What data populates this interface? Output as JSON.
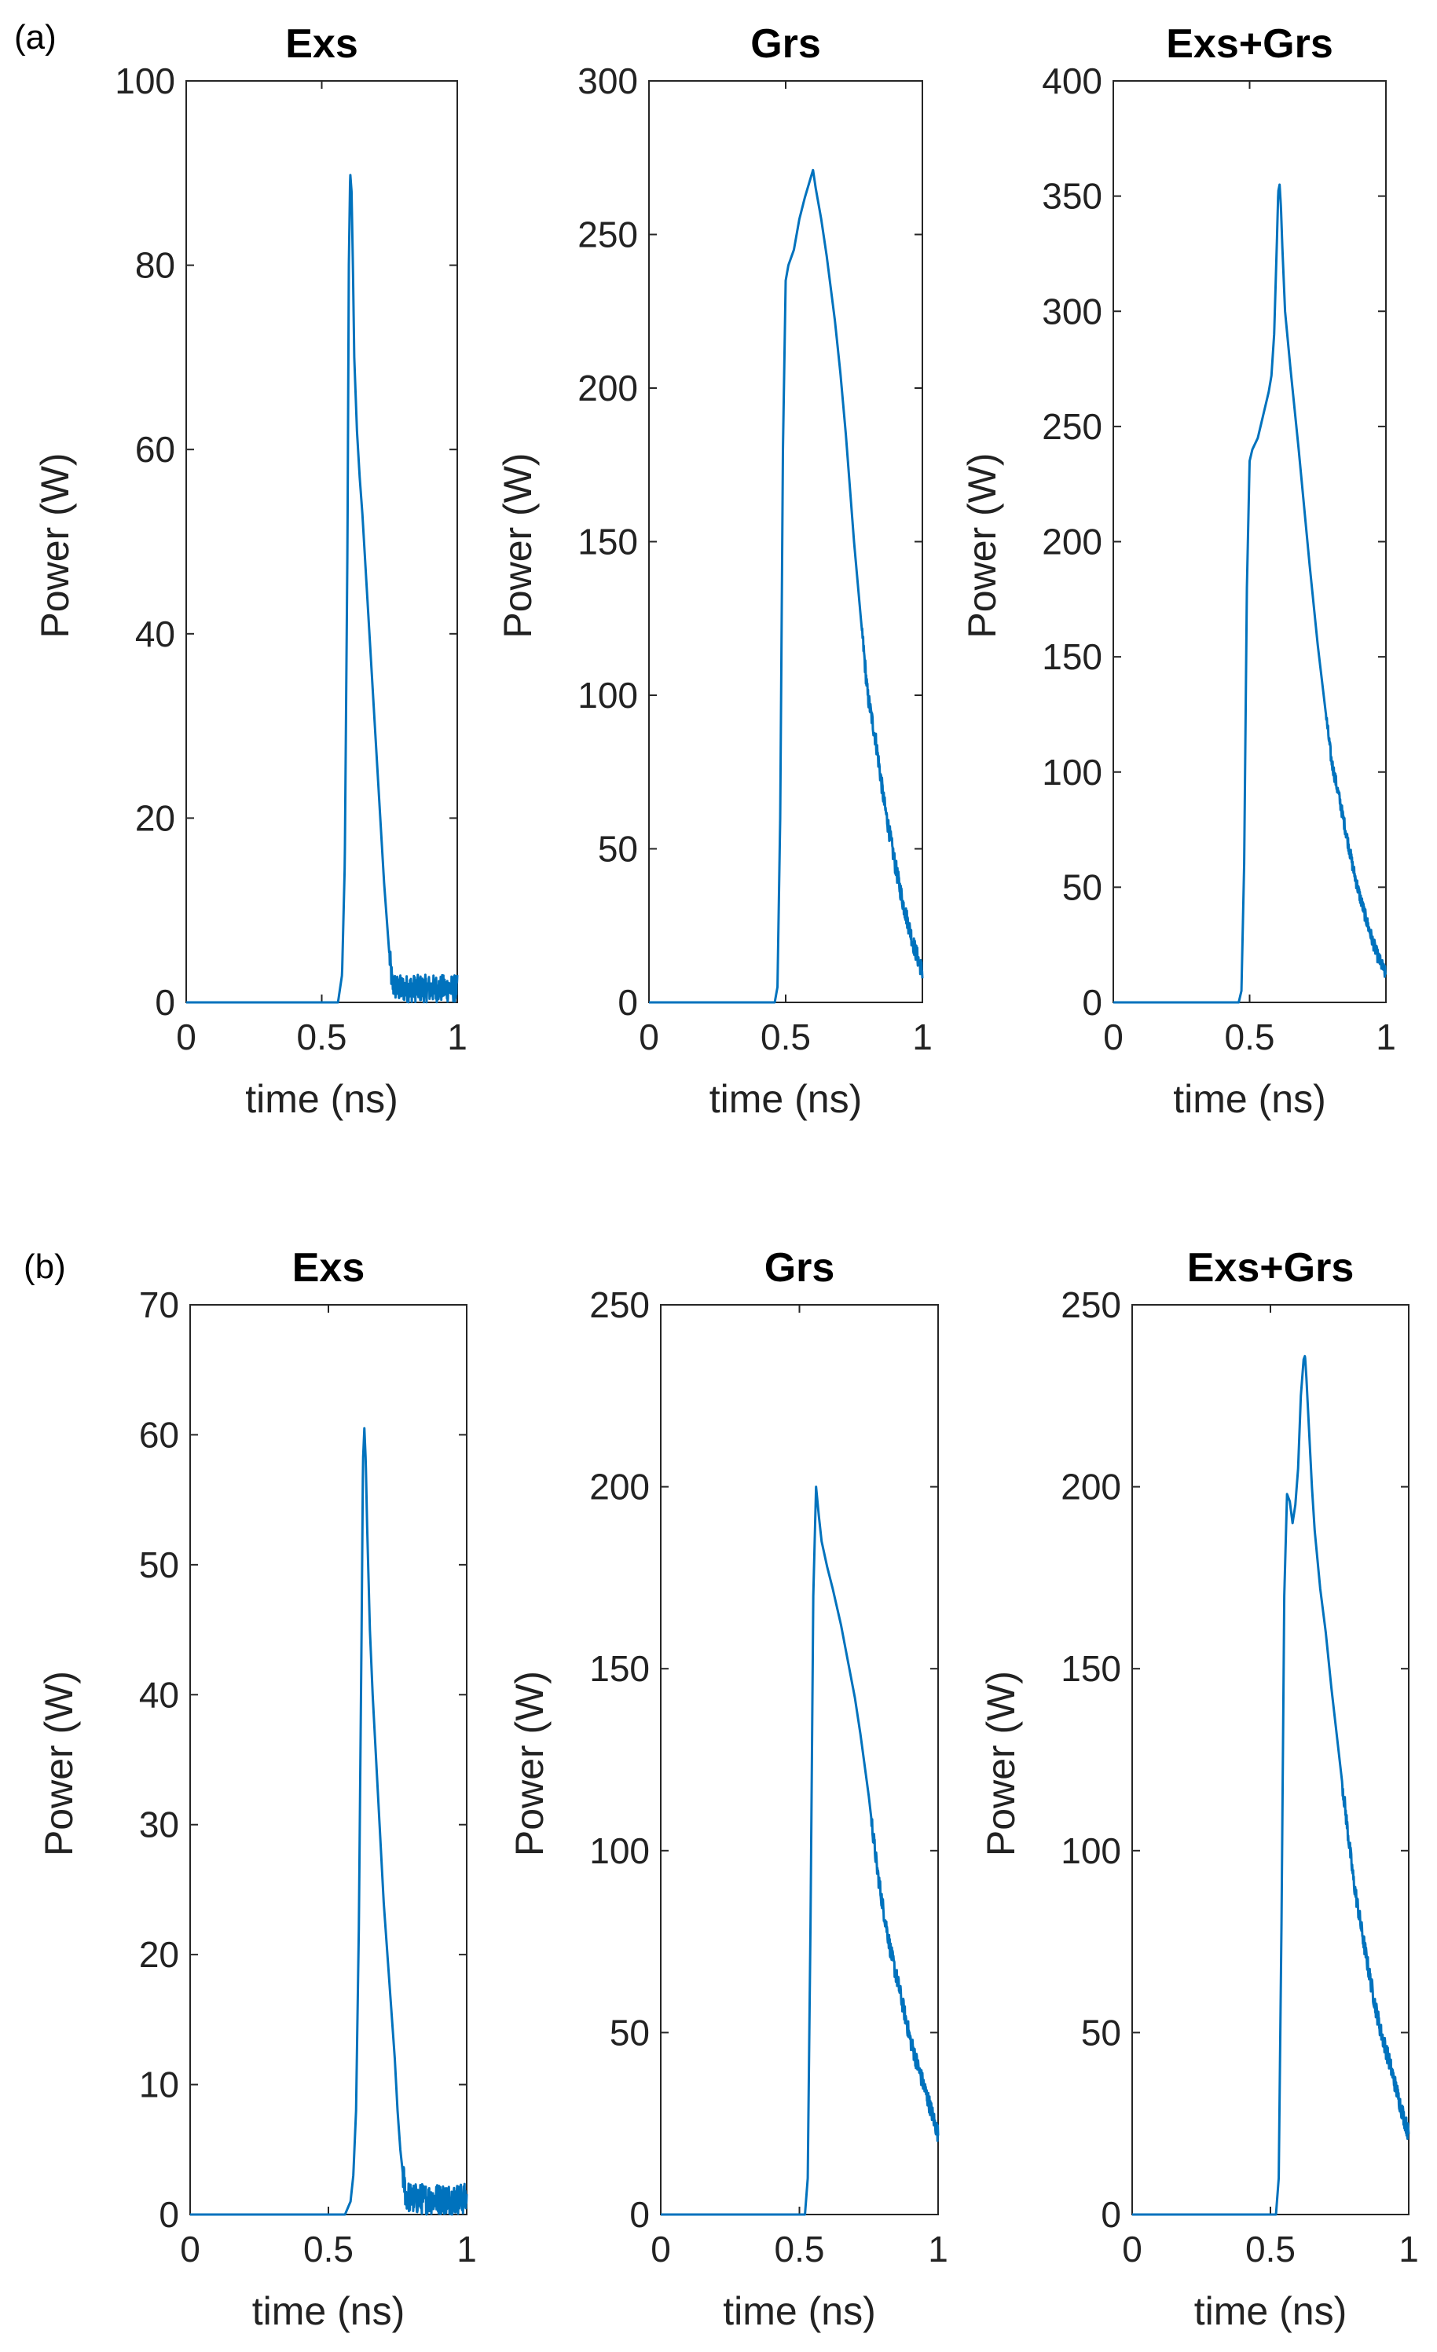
{
  "panel_labels": [
    "(a)",
    "(b)"
  ],
  "line_color": "#0072BD",
  "chart_data": [
    {
      "group": "(a)",
      "type": "line",
      "title": "Exs",
      "xlabel": "time (ns)",
      "ylabel": "Power (W)",
      "xlim": [
        0,
        1
      ],
      "ylim": [
        0,
        100
      ],
      "xticks": [
        0,
        0.5,
        1
      ],
      "xtick_labels": [
        "0",
        "0.5",
        "1"
      ],
      "yticks": [
        0,
        20,
        40,
        60,
        80,
        100
      ],
      "ytick_labels": [
        "0",
        "20",
        "40",
        "60",
        "80",
        "100"
      ],
      "grid": false,
      "series": [
        {
          "x": [
            0,
            0.5,
            0.56,
            0.575,
            0.585,
            0.595,
            0.6,
            0.605,
            0.61,
            0.615,
            0.62,
            0.63,
            0.64,
            0.65,
            0.66,
            0.67,
            0.68,
            0.69,
            0.7,
            0.71,
            0.72,
            0.73,
            0.74,
            0.75,
            0.76,
            0.78,
            0.8,
            0.85,
            0.9,
            0.95,
            1.0
          ],
          "y": [
            0,
            0,
            0,
            3,
            15,
            50,
            80,
            90,
            88,
            80,
            70,
            62,
            57,
            53,
            48,
            43,
            38,
            33,
            28,
            23,
            18,
            13,
            9,
            5,
            2,
            1.5,
            1.5,
            1.5,
            1.5,
            1.5,
            1.5
          ],
          "noise_from": 0.75,
          "noise_amplitude": 1.5
        }
      ]
    },
    {
      "group": "(a)",
      "type": "line",
      "title": "Grs",
      "xlabel": "time (ns)",
      "ylabel": "Power (W)",
      "xlim": [
        0,
        1
      ],
      "ylim": [
        0,
        300
      ],
      "xticks": [
        0,
        0.5,
        1
      ],
      "xtick_labels": [
        "0",
        "0.5",
        "1"
      ],
      "yticks": [
        0,
        50,
        100,
        150,
        200,
        250,
        300
      ],
      "ytick_labels": [
        "0",
        "50",
        "100",
        "150",
        "200",
        "250",
        "300"
      ],
      "grid": false,
      "series": [
        {
          "x": [
            0,
            0.46,
            0.47,
            0.48,
            0.49,
            0.5,
            0.51,
            0.53,
            0.55,
            0.57,
            0.59,
            0.6,
            0.61,
            0.63,
            0.65,
            0.68,
            0.7,
            0.72,
            0.75,
            0.78,
            0.8,
            0.83,
            0.86,
            0.88,
            0.9,
            0.93,
            0.95,
            0.97,
            1.0
          ],
          "y": [
            0,
            0,
            5,
            60,
            180,
            235,
            240,
            245,
            255,
            262,
            268,
            271,
            265,
            255,
            243,
            222,
            205,
            185,
            150,
            120,
            100,
            85,
            65,
            55,
            45,
            32,
            25,
            18,
            10
          ],
          "noise_from": 0.78,
          "noise_amplitude": 3
        }
      ]
    },
    {
      "group": "(a)",
      "type": "line",
      "title": "Exs+Grs",
      "xlabel": "time (ns)",
      "ylabel": "Power (W)",
      "xlim": [
        0,
        1
      ],
      "ylim": [
        0,
        400
      ],
      "xticks": [
        0,
        0.5,
        1
      ],
      "xtick_labels": [
        "0",
        "0.5",
        "1"
      ],
      "yticks": [
        0,
        50,
        100,
        150,
        200,
        250,
        300,
        350,
        400
      ],
      "ytick_labels": [
        "0",
        "50",
        "100",
        "150",
        "200",
        "250",
        "300",
        "350",
        "400"
      ],
      "grid": false,
      "series": [
        {
          "x": [
            0,
            0.46,
            0.47,
            0.48,
            0.49,
            0.5,
            0.51,
            0.53,
            0.55,
            0.57,
            0.58,
            0.59,
            0.6,
            0.605,
            0.61,
            0.615,
            0.62,
            0.63,
            0.65,
            0.68,
            0.7,
            0.72,
            0.75,
            0.78,
            0.8,
            0.83,
            0.86,
            0.88,
            0.9,
            0.93,
            0.95,
            0.97,
            1.0
          ],
          "y": [
            0,
            0,
            5,
            60,
            180,
            235,
            240,
            245,
            255,
            265,
            272,
            290,
            330,
            352,
            355,
            345,
            328,
            300,
            275,
            240,
            215,
            190,
            155,
            125,
            105,
            88,
            70,
            58,
            48,
            35,
            27,
            20,
            12
          ],
          "noise_from": 0.78,
          "noise_amplitude": 3
        }
      ]
    },
    {
      "group": "(b)",
      "type": "line",
      "title": "Exs",
      "xlabel": "time (ns)",
      "ylabel": "Power (W)",
      "xlim": [
        0,
        1
      ],
      "ylim": [
        0,
        70
      ],
      "xticks": [
        0,
        0.5,
        1
      ],
      "xtick_labels": [
        "0",
        "0.5",
        "1"
      ],
      "yticks": [
        0,
        10,
        20,
        30,
        40,
        50,
        60,
        70
      ],
      "ytick_labels": [
        "0",
        "10",
        "20",
        "30",
        "40",
        "50",
        "60",
        "70"
      ],
      "grid": false,
      "series": [
        {
          "x": [
            0,
            0.5,
            0.56,
            0.58,
            0.59,
            0.6,
            0.61,
            0.62,
            0.625,
            0.63,
            0.635,
            0.64,
            0.65,
            0.66,
            0.67,
            0.68,
            0.69,
            0.7,
            0.71,
            0.72,
            0.73,
            0.74,
            0.75,
            0.76,
            0.77,
            0.78,
            0.8,
            0.85,
            0.9,
            0.95,
            1.0
          ],
          "y": [
            0,
            0,
            0,
            1,
            3,
            8,
            22,
            45,
            58,
            60.5,
            58,
            53,
            45,
            40,
            36,
            32,
            28,
            24,
            21,
            18,
            15,
            12,
            8,
            5,
            3,
            1.5,
            1.2,
            1.2,
            1.2,
            1.2,
            1.2
          ],
          "noise_from": 0.77,
          "noise_amplitude": 1.2
        }
      ]
    },
    {
      "group": "(b)",
      "type": "line",
      "title": "Grs",
      "xlabel": "time (ns)",
      "ylabel": "Power (W)",
      "xlim": [
        0,
        1
      ],
      "ylim": [
        0,
        250
      ],
      "xticks": [
        0,
        0.5,
        1
      ],
      "xtick_labels": [
        "0",
        "0.5",
        "1"
      ],
      "yticks": [
        0,
        50,
        100,
        150,
        200,
        250
      ],
      "ytick_labels": [
        "0",
        "50",
        "100",
        "150",
        "200",
        "250"
      ],
      "grid": false,
      "series": [
        {
          "x": [
            0,
            0.52,
            0.53,
            0.54,
            0.55,
            0.56,
            0.57,
            0.58,
            0.6,
            0.62,
            0.65,
            0.68,
            0.7,
            0.72,
            0.75,
            0.78,
            0.8,
            0.83,
            0.86,
            0.88,
            0.9,
            0.93,
            0.95,
            0.97,
            1.0
          ],
          "y": [
            0,
            0,
            10,
            80,
            170,
            200,
            192,
            185,
            178,
            172,
            162,
            150,
            142,
            132,
            115,
            95,
            85,
            72,
            62,
            55,
            48,
            40,
            35,
            30,
            22
          ],
          "noise_from": 0.76,
          "noise_amplitude": 2.5
        }
      ]
    },
    {
      "group": "(b)",
      "type": "line",
      "title": "Exs+Grs",
      "xlabel": "time (ns)",
      "ylabel": "Power (W)",
      "xlim": [
        0,
        1
      ],
      "ylim": [
        0,
        250
      ],
      "xticks": [
        0,
        0.5,
        1
      ],
      "xtick_labels": [
        "0",
        "0.5",
        "1"
      ],
      "yticks": [
        0,
        50,
        100,
        150,
        200,
        250
      ],
      "ytick_labels": [
        "0",
        "50",
        "100",
        "150",
        "200",
        "250"
      ],
      "grid": false,
      "series": [
        {
          "x": [
            0,
            0.52,
            0.53,
            0.54,
            0.55,
            0.56,
            0.57,
            0.58,
            0.59,
            0.6,
            0.61,
            0.62,
            0.625,
            0.63,
            0.64,
            0.65,
            0.66,
            0.68,
            0.7,
            0.72,
            0.75,
            0.78,
            0.8,
            0.83,
            0.86,
            0.88,
            0.9,
            0.93,
            0.95,
            0.97,
            1.0
          ],
          "y": [
            0,
            0,
            10,
            80,
            170,
            198,
            196,
            190,
            195,
            205,
            225,
            235,
            236,
            230,
            215,
            200,
            188,
            172,
            160,
            145,
            125,
            105,
            92,
            78,
            65,
            57,
            50,
            42,
            36,
            30,
            22
          ],
          "noise_from": 0.76,
          "noise_amplitude": 2.5
        }
      ]
    }
  ]
}
